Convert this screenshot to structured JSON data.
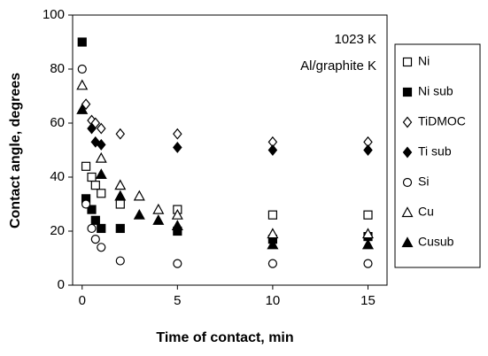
{
  "chart_data": {
    "type": "scatter",
    "x_label": "Time of contact, min",
    "y_label": "Contact angle, degrees",
    "annotations": [
      "1023 K",
      "Al/graphite K"
    ],
    "xlim": [
      -0.5,
      16
    ],
    "xticks": [
      0,
      5,
      10,
      15
    ],
    "ylim": [
      0,
      100
    ],
    "yticks": [
      0,
      20,
      40,
      60,
      80,
      100
    ],
    "series": [
      {
        "name": "Ni",
        "color": "#000000",
        "marker": "square",
        "filled": false,
        "x": [
          0.2,
          0.5,
          0.7,
          1,
          2,
          5,
          10,
          15
        ],
        "values": [
          44,
          40,
          37,
          34,
          30,
          28,
          26,
          26
        ]
      },
      {
        "name": "Ni sub",
        "color": "#000000",
        "marker": "square",
        "filled": true,
        "x": [
          0,
          0.2,
          0.5,
          0.7,
          1,
          2,
          5,
          10,
          15
        ],
        "values": [
          90,
          32,
          28,
          24,
          21,
          21,
          20,
          17,
          18
        ]
      },
      {
        "name": "TiDMOC",
        "color": "#000000",
        "marker": "diamond",
        "filled": false,
        "x": [
          0.2,
          0.5,
          0.7,
          1,
          2,
          5,
          10,
          15
        ],
        "values": [
          67,
          61,
          60,
          58,
          56,
          56,
          53,
          53
        ]
      },
      {
        "name": "Ti sub",
        "color": "#000000",
        "marker": "diamond",
        "filled": true,
        "x": [
          0.5,
          0.7,
          1,
          5,
          10,
          15
        ],
        "values": [
          58,
          53,
          52,
          51,
          50,
          50
        ]
      },
      {
        "name": "Si",
        "color": "#000000",
        "marker": "circle",
        "filled": false,
        "x": [
          0,
          0.2,
          0.5,
          0.7,
          1,
          2,
          5,
          10,
          15
        ],
        "values": [
          80,
          30,
          21,
          17,
          14,
          9,
          8,
          8,
          8
        ]
      },
      {
        "name": "Cu",
        "color": "#000000",
        "marker": "triangle",
        "filled": false,
        "x": [
          0,
          1,
          2,
          3,
          4,
          5,
          10,
          15
        ],
        "values": [
          74,
          47,
          37,
          33,
          28,
          26,
          19,
          19
        ]
      },
      {
        "name": "Cusub",
        "color": "#000000",
        "marker": "triangle",
        "filled": true,
        "x": [
          0,
          1,
          2,
          3,
          4,
          5,
          10,
          15
        ],
        "values": [
          65,
          41,
          33,
          26,
          24,
          22,
          15,
          15
        ]
      }
    ]
  }
}
